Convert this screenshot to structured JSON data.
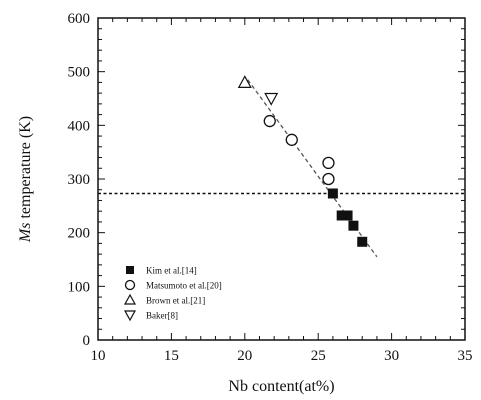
{
  "chart_data": {
    "type": "scatter",
    "xlabel": "Nb content(at%)",
    "ylabel_prefix": "Ms",
    "ylabel_suffix": " temperature (K)",
    "xlim": [
      10,
      35
    ],
    "ylim": [
      0,
      600
    ],
    "xticks": [
      10,
      15,
      20,
      25,
      30,
      35
    ],
    "yticks": [
      0,
      100,
      200,
      300,
      400,
      500,
      600
    ],
    "xtick_labels": [
      "10",
      "15",
      "20",
      "25",
      "30",
      "35"
    ],
    "ytick_labels": [
      "0",
      "100",
      "200",
      "300",
      "400",
      "500",
      "600"
    ],
    "legend_position": "lower-left",
    "series": [
      {
        "name": "Kim et al.[14]",
        "marker": "filled-square",
        "points": [
          {
            "x": 26.0,
            "y": 273
          },
          {
            "x": 26.6,
            "y": 232
          },
          {
            "x": 27.0,
            "y": 232
          },
          {
            "x": 27.4,
            "y": 213
          },
          {
            "x": 28.0,
            "y": 183
          }
        ]
      },
      {
        "name": "Matsumoto et al.[20]",
        "marker": "open-circle",
        "points": [
          {
            "x": 21.7,
            "y": 408
          },
          {
            "x": 23.2,
            "y": 373
          },
          {
            "x": 25.7,
            "y": 330
          },
          {
            "x": 25.7,
            "y": 300
          }
        ]
      },
      {
        "name": "Brown et al.[21]",
        "marker": "open-triangle-up",
        "points": [
          {
            "x": 20.0,
            "y": 480
          }
        ]
      },
      {
        "name": "Baker[8]",
        "marker": "open-triangle-down",
        "points": [
          {
            "x": 21.8,
            "y": 450
          }
        ]
      }
    ],
    "trend_line": {
      "style": "dashed",
      "x": [
        20.2,
        29.0
      ],
      "y": [
        485,
        155
      ]
    },
    "reference_line": {
      "style": "dotted",
      "y": 273
    }
  }
}
